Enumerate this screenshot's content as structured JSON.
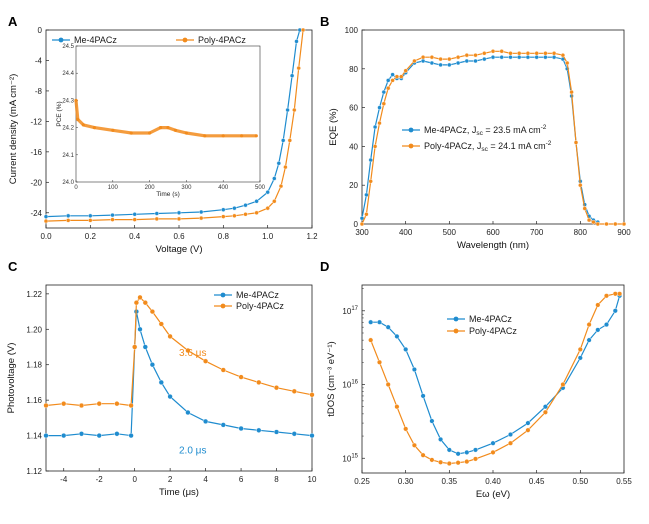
{
  "colors": {
    "me": "#1f8ccf",
    "poly": "#f28b1c",
    "axis": "#222222"
  },
  "panel_letters": [
    "A",
    "B",
    "C",
    "D"
  ],
  "chart_data": [
    {
      "panel": "A",
      "type": "line",
      "xlabel": "Voltage (V)",
      "ylabel": "Current density (mA cm⁻²)",
      "xlim": [
        0.0,
        1.2
      ],
      "ylim": [
        -26,
        0
      ],
      "xticks": [
        "0.0",
        "0.2",
        "0.4",
        "0.6",
        "0.8",
        "1.0",
        "1.2"
      ],
      "yticks": [
        "0",
        "-4",
        "-8",
        "-12",
        "-16",
        "-20",
        "-24"
      ],
      "legend": "top",
      "series": [
        {
          "name": "Me-4PACz",
          "x": [
            0.0,
            0.1,
            0.2,
            0.3,
            0.4,
            0.5,
            0.6,
            0.7,
            0.8,
            0.85,
            0.9,
            0.95,
            1.0,
            1.03,
            1.05,
            1.07,
            1.09,
            1.11,
            1.13,
            1.145
          ],
          "y": [
            -24.5,
            -24.4,
            -24.4,
            -24.3,
            -24.2,
            -24.1,
            -24.0,
            -23.9,
            -23.6,
            -23.4,
            -23.0,
            -22.5,
            -21.3,
            -19.5,
            -17.5,
            -14.5,
            -10.5,
            -6.0,
            -1.5,
            0
          ]
        },
        {
          "name": "Poly-4PACz",
          "x": [
            0.0,
            0.1,
            0.2,
            0.3,
            0.4,
            0.5,
            0.6,
            0.7,
            0.8,
            0.85,
            0.9,
            0.95,
            1.0,
            1.03,
            1.06,
            1.08,
            1.1,
            1.12,
            1.14,
            1.16
          ],
          "y": [
            -25.1,
            -25.0,
            -25.0,
            -24.9,
            -24.9,
            -24.8,
            -24.8,
            -24.7,
            -24.5,
            -24.4,
            -24.2,
            -24.0,
            -23.4,
            -22.5,
            -20.5,
            -18.0,
            -14.5,
            -10.5,
            -5.0,
            0
          ]
        }
      ],
      "inset": {
        "xlabel": "Time (s)",
        "ylabel": "PCE (%)",
        "xlim": [
          0,
          500
        ],
        "ylim": [
          24.0,
          24.5
        ],
        "xticks": [
          "0",
          "100",
          "200",
          "300",
          "400",
          "500"
        ],
        "yticks": [
          "24.0",
          "24.1",
          "24.2",
          "24.3",
          "24.4",
          "24.5"
        ],
        "series": [
          {
            "name": "Poly-4PACz",
            "x": [
              0,
              5,
              20,
              50,
              100,
              150,
              200,
              230,
              250,
              270,
              300,
              350,
              400,
              450,
              490
            ],
            "y": [
              24.3,
              24.23,
              24.21,
              24.2,
              24.19,
              24.18,
              24.18,
              24.2,
              24.2,
              24.19,
              24.18,
              24.17,
              24.17,
              24.17,
              24.17
            ]
          }
        ]
      }
    },
    {
      "panel": "B",
      "type": "line",
      "xlabel": "Wavelength (nm)",
      "ylabel": "EQE (%)",
      "xlim": [
        300,
        900
      ],
      "ylim": [
        0,
        100
      ],
      "xticks": [
        "300",
        "400",
        "500",
        "600",
        "700",
        "800",
        "900"
      ],
      "yticks": [
        "0",
        "20",
        "40",
        "60",
        "80",
        "100"
      ],
      "legend": "center-left",
      "legend_entries": [
        {
          "text": "Me-4PACz, J",
          "sub": "sc",
          "tail": " = 23.5 mA cm",
          "sup": "-2"
        },
        {
          "text": "Poly-4PACz, J",
          "sub": "sc",
          "tail": " = 24.1 mA cm",
          "sup": "-2"
        }
      ],
      "series": [
        {
          "name": "Me-4PACz",
          "x": [
            300,
            310,
            320,
            330,
            340,
            350,
            360,
            370,
            380,
            390,
            400,
            420,
            440,
            460,
            480,
            500,
            520,
            540,
            560,
            580,
            600,
            620,
            640,
            660,
            680,
            700,
            720,
            740,
            760,
            770,
            780,
            790,
            800,
            810,
            820,
            830,
            840
          ],
          "y": [
            3,
            15,
            33,
            50,
            60,
            68,
            74,
            77,
            75,
            75,
            78,
            83,
            84,
            83,
            82,
            82,
            83,
            84,
            84,
            85,
            86,
            86,
            86,
            86,
            86,
            86,
            86,
            86,
            85,
            80,
            66,
            42,
            22,
            10,
            4,
            2,
            1
          ]
        },
        {
          "name": "Poly-4PACz",
          "x": [
            300,
            310,
            320,
            330,
            340,
            350,
            360,
            370,
            380,
            390,
            400,
            420,
            440,
            460,
            480,
            500,
            520,
            540,
            560,
            580,
            600,
            620,
            640,
            660,
            680,
            700,
            720,
            740,
            760,
            770,
            780,
            790,
            800,
            810,
            820,
            830,
            840,
            860,
            880,
            900
          ],
          "y": [
            0,
            5,
            22,
            40,
            52,
            62,
            70,
            74,
            76,
            76,
            79,
            84,
            86,
            86,
            85,
            85,
            86,
            87,
            87,
            88,
            89,
            89,
            88,
            88,
            88,
            88,
            88,
            88,
            87,
            83,
            68,
            42,
            20,
            8,
            2,
            1,
            0,
            0,
            0,
            0
          ]
        }
      ]
    },
    {
      "panel": "C",
      "type": "line",
      "xlabel": "Time (μs)",
      "ylabel": "Photovoltage (V)",
      "xlim": [
        -5,
        10
      ],
      "ylim": [
        1.12,
        1.225
      ],
      "xticks": [
        "-4",
        "-2",
        "0",
        "2",
        "4",
        "6",
        "8",
        "10"
      ],
      "yticks": [
        "1.12",
        "1.14",
        "1.16",
        "1.18",
        "1.20",
        "1.22"
      ],
      "legend": "top-right",
      "annotations": [
        {
          "text": "3.6 μs",
          "series": "Poly-4PACz",
          "x": 2.5,
          "y": 1.185
        },
        {
          "text": "2.0 μs",
          "series": "Me-4PACz",
          "x": 2.5,
          "y": 1.13
        }
      ],
      "series": [
        {
          "name": "Me-4PACz",
          "x": [
            -5,
            -4,
            -3,
            -2,
            -1,
            -0.2,
            0,
            0.1,
            0.3,
            0.6,
            1,
            1.5,
            2,
            3,
            4,
            5,
            6,
            7,
            8,
            9,
            10
          ],
          "y": [
            1.14,
            1.14,
            1.141,
            1.14,
            1.141,
            1.14,
            1.19,
            1.21,
            1.2,
            1.19,
            1.18,
            1.17,
            1.162,
            1.153,
            1.148,
            1.146,
            1.144,
            1.143,
            1.142,
            1.141,
            1.14
          ]
        },
        {
          "name": "Poly-4PACz",
          "x": [
            -5,
            -4,
            -3,
            -2,
            -1,
            -0.2,
            0,
            0.1,
            0.3,
            0.6,
            1,
            1.5,
            2,
            3,
            4,
            5,
            6,
            7,
            8,
            9,
            10
          ],
          "y": [
            1.157,
            1.158,
            1.157,
            1.158,
            1.158,
            1.157,
            1.19,
            1.215,
            1.218,
            1.215,
            1.21,
            1.203,
            1.196,
            1.188,
            1.182,
            1.177,
            1.173,
            1.17,
            1.167,
            1.165,
            1.163
          ]
        }
      ]
    },
    {
      "panel": "D",
      "type": "line",
      "xlabel": "Eω (eV)",
      "ylabel": "tDOS (cm⁻³ eV⁻¹)",
      "xlim": [
        0.25,
        0.55
      ],
      "ylim_log10": [
        14.8,
        17.35
      ],
      "yscale": "log",
      "xticks": [
        "0.25",
        "0.30",
        "0.35",
        "0.40",
        "0.45",
        "0.50",
        "0.55"
      ],
      "yticks_exp": [
        "15",
        "16",
        "17"
      ],
      "legend": "top-center",
      "series": [
        {
          "name": "Me-4PACz",
          "x": [
            0.26,
            0.27,
            0.28,
            0.29,
            0.3,
            0.31,
            0.32,
            0.33,
            0.34,
            0.35,
            0.36,
            0.37,
            0.38,
            0.4,
            0.42,
            0.44,
            0.46,
            0.48,
            0.5,
            0.51,
            0.52,
            0.53,
            0.54,
            0.545
          ],
          "y": [
            7e+16,
            7e+16,
            6e+16,
            4.5e+16,
            3e+16,
            1.6e+16,
            7000000000000000.0,
            3200000000000000.0,
            1800000000000000.0,
            1300000000000000.0,
            1150000000000000.0,
            1200000000000000.0,
            1300000000000000.0,
            1600000000000000.0,
            2100000000000000.0,
            3000000000000000.0,
            5000000000000000.0,
            9000000000000000.0,
            2.3e+16,
            4e+16,
            5.5e+16,
            6.5e+16,
            1e+17,
            1.6e+17
          ]
        },
        {
          "name": "Poly-4PACz",
          "x": [
            0.26,
            0.27,
            0.28,
            0.29,
            0.3,
            0.31,
            0.32,
            0.33,
            0.34,
            0.35,
            0.36,
            0.37,
            0.38,
            0.4,
            0.42,
            0.44,
            0.46,
            0.48,
            0.5,
            0.51,
            0.52,
            0.53,
            0.54,
            0.545
          ],
          "y": [
            4e+16,
            2e+16,
            1e+16,
            5000000000000000.0,
            2500000000000000.0,
            1500000000000000.0,
            1100000000000000.0,
            950000000000000.0,
            880000000000000.0,
            850000000000000.0,
            870000000000000.0,
            900000000000000.0,
            980000000000000.0,
            1200000000000000.0,
            1600000000000000.0,
            2400000000000000.0,
            4200000000000000.0,
            1e+16,
            3e+16,
            6.5e+16,
            1.2e+17,
            1.6e+17,
            1.7e+17,
            1.7e+17
          ]
        }
      ]
    }
  ]
}
